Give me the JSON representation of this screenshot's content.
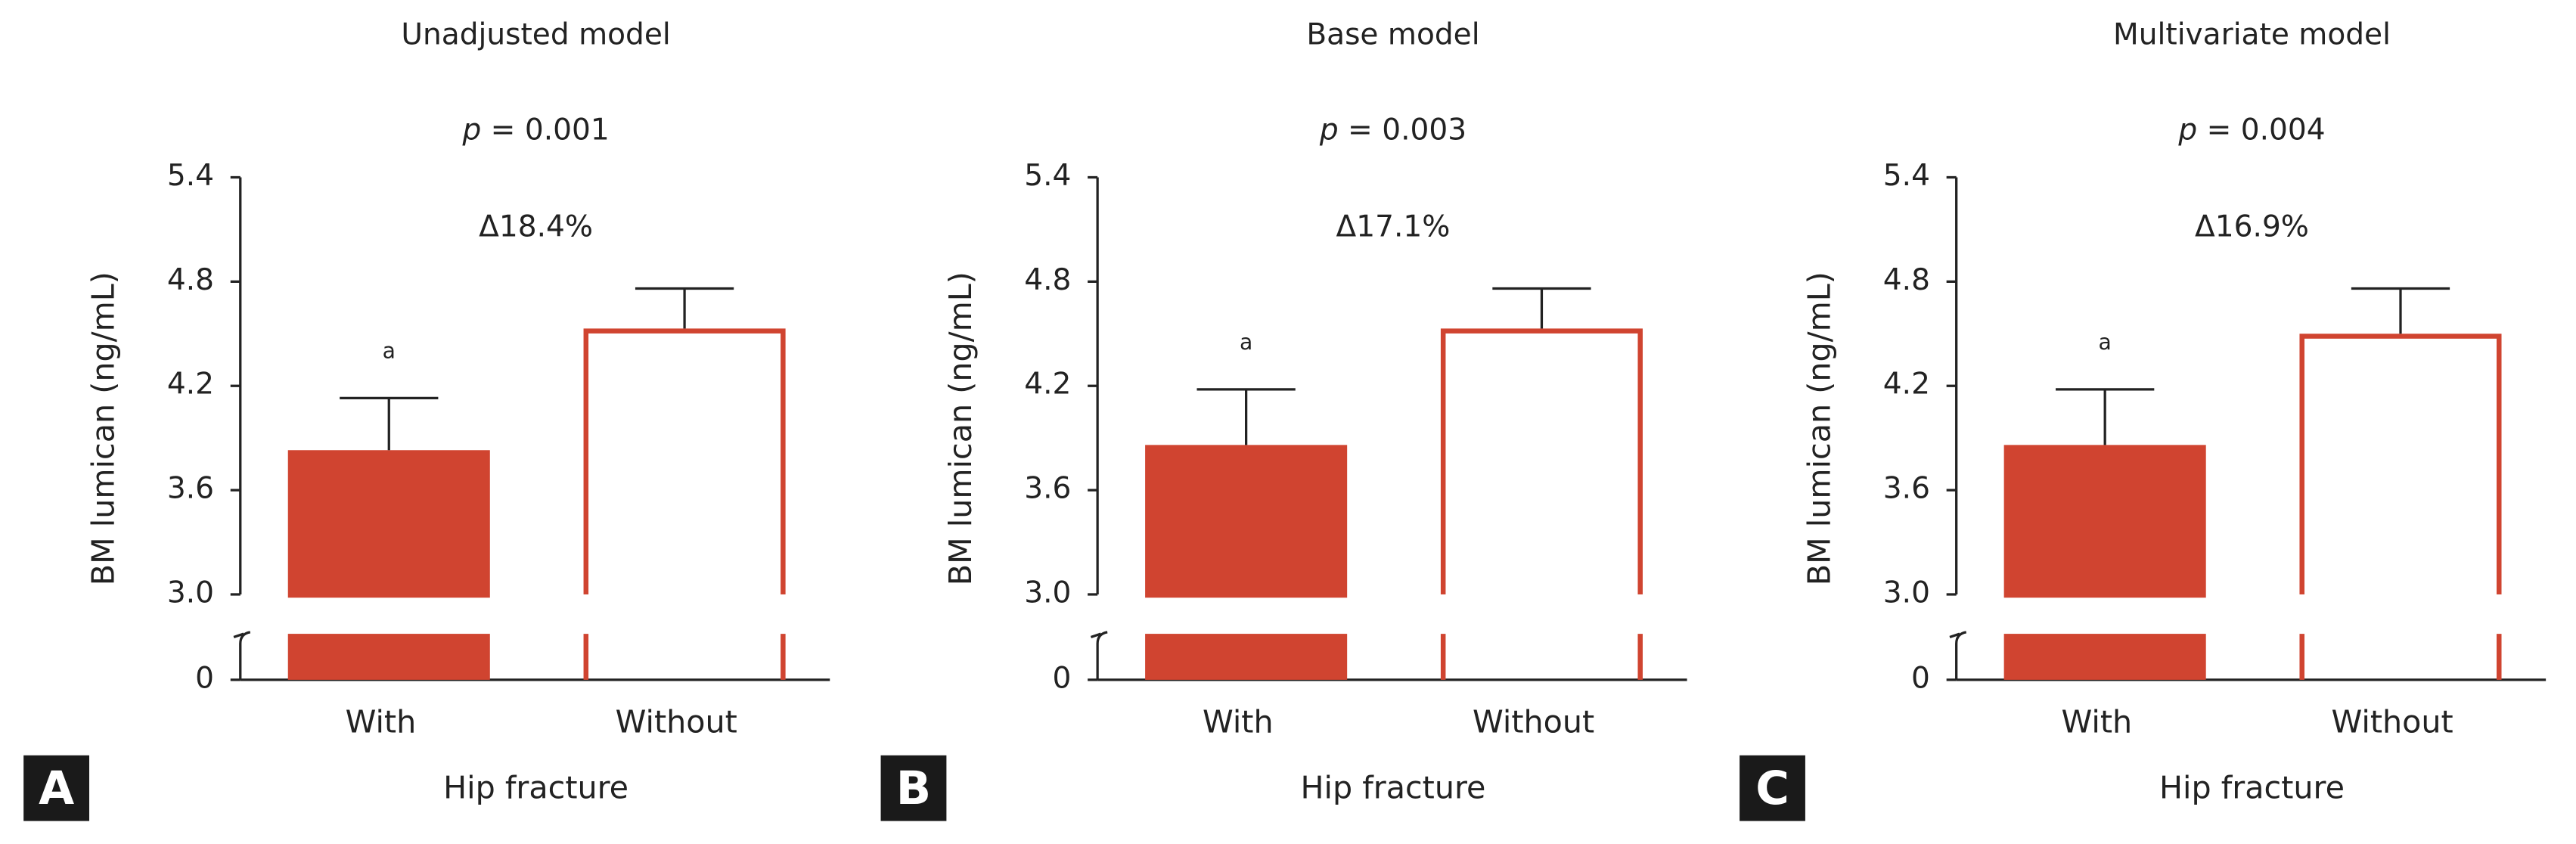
{
  "chart_data": [
    {
      "type": "bar",
      "panel": "A",
      "title": "Unadjusted  model",
      "annotations": [
        "p = 0.001",
        "Δ18.4%"
      ],
      "categories": [
        "With",
        "Without"
      ],
      "values": [
        3.83,
        4.53
      ],
      "errors": [
        0.3,
        0.23
      ],
      "value_annotations": [
        "a",
        null
      ],
      "fills": [
        "#d04430",
        "#ffffff"
      ],
      "color": "#d04430",
      "x_label": "Hip fracture",
      "y_label": "BM lumican (ng/mL)",
      "ylim": [
        0,
        5.4
      ],
      "axis_break": [
        0,
        3
      ],
      "yticks": [
        0,
        {
          "value": 3,
          "label": "3.0"
        },
        3.6,
        4.2,
        4.8,
        5.4
      ]
    },
    {
      "type": "bar",
      "panel": "B",
      "title": "Base model",
      "annotations": [
        "p = 0.003",
        "Δ17.1%"
      ],
      "categories": [
        "With",
        "Without"
      ],
      "values": [
        3.86,
        4.53
      ],
      "errors": [
        0.32,
        0.23
      ],
      "value_annotations": [
        "a",
        null
      ],
      "fills": [
        "#d04430",
        "#ffffff"
      ],
      "color": "#d04430",
      "x_label": "Hip fracture",
      "y_label": "BM lumican (ng/mL)",
      "ylim": [
        0,
        5.4
      ],
      "axis_break": [
        0,
        3
      ],
      "yticks": [
        0,
        {
          "value": 3,
          "label": "3.0"
        },
        3.6,
        4.2,
        4.8,
        5.4
      ]
    },
    {
      "type": "bar",
      "panel": "C",
      "title": "Multivariate model",
      "annotations": [
        "p = 0.004",
        "Δ16.9%"
      ],
      "categories": [
        "With",
        "Without"
      ],
      "values": [
        3.86,
        4.5
      ],
      "errors": [
        0.32,
        0.26
      ],
      "value_annotations": [
        "a",
        null
      ],
      "fills": [
        "#d04430",
        "#ffffff"
      ],
      "color": "#d04430",
      "x_label": "Hip fracture",
      "y_label": "BM lumican (ng/mL)",
      "ylim": [
        0,
        5.4
      ],
      "axis_break": [
        0,
        3
      ],
      "yticks": [
        0,
        {
          "value": 3,
          "label": "3.0"
        },
        3.6,
        4.2,
        4.8,
        5.4
      ]
    }
  ]
}
